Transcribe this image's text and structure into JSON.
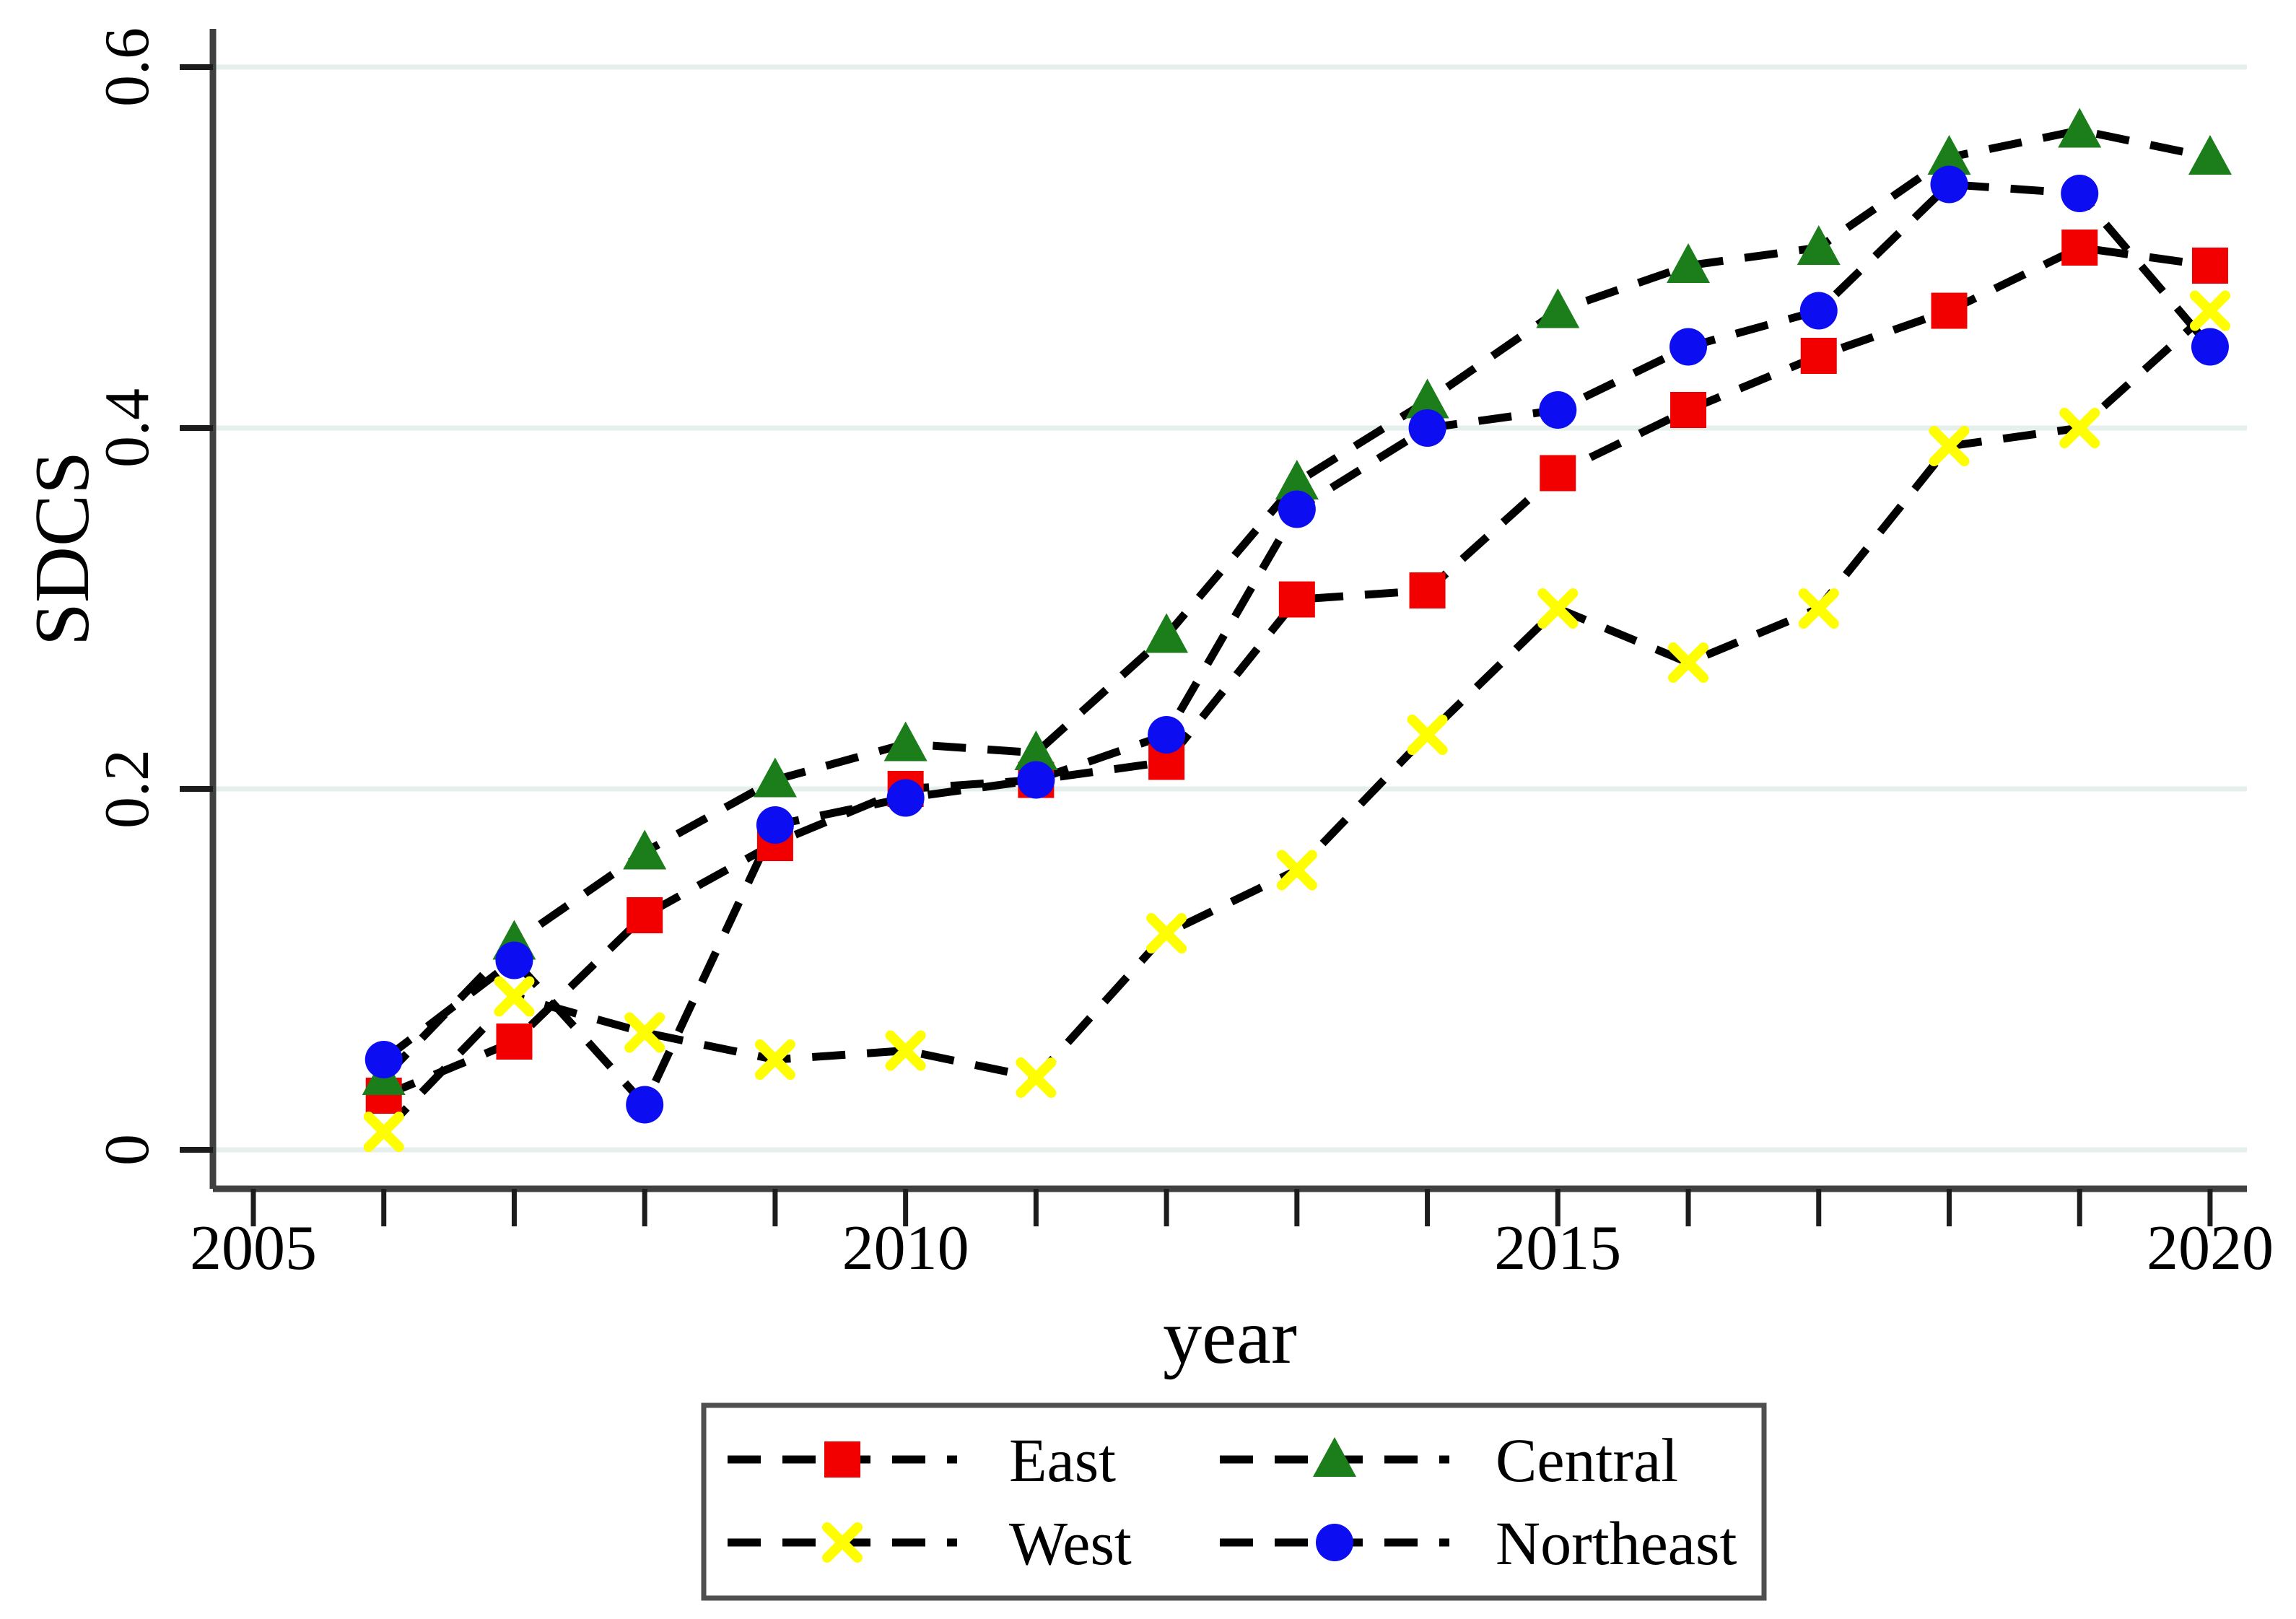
{
  "chart_data": {
    "type": "line",
    "title": "",
    "xlabel": "year",
    "ylabel": "SDCS",
    "x": [
      2006,
      2007,
      2008,
      2009,
      2010,
      2011,
      2012,
      2013,
      2014,
      2015,
      2016,
      2017,
      2018,
      2019,
      2020
    ],
    "series": [
      {
        "name": "East",
        "marker": "square",
        "color": "#f20000",
        "values": [
          0.03,
          0.06,
          0.13,
          0.17,
          0.2,
          0.205,
          0.215,
          0.305,
          0.31,
          0.375,
          0.41,
          0.44,
          0.465,
          0.5,
          0.49
        ]
      },
      {
        "name": "Central",
        "marker": "triangle",
        "color": "#1b7e1b",
        "values": [
          0.04,
          0.115,
          0.165,
          0.205,
          0.225,
          0.22,
          0.285,
          0.37,
          0.415,
          0.465,
          0.49,
          0.5,
          0.55,
          0.565,
          0.55
        ]
      },
      {
        "name": "West",
        "marker": "x",
        "color": "#fefe00",
        "values": [
          0.01,
          0.085,
          0.065,
          0.05,
          0.055,
          0.04,
          0.12,
          0.155,
          0.23,
          0.3,
          0.27,
          0.3,
          0.39,
          0.4,
          0.465
        ]
      },
      {
        "name": "Northeast",
        "marker": "circle",
        "color": "#0d0df2",
        "values": [
          0.05,
          0.105,
          0.025,
          0.18,
          0.195,
          0.205,
          0.23,
          0.355,
          0.4,
          0.41,
          0.445,
          0.465,
          0.535,
          0.53,
          0.445
        ]
      }
    ],
    "x_axis": {
      "tick_years": [
        2005,
        2006,
        2007,
        2008,
        2009,
        2010,
        2011,
        2012,
        2013,
        2014,
        2015,
        2016,
        2017,
        2018,
        2019,
        2020
      ],
      "labeled_ticks": [
        "2005",
        "2010",
        "2015",
        "2020"
      ],
      "labeled_tick_years": [
        2005,
        2010,
        2015,
        2020
      ],
      "range": [
        2004.69,
        2020.28
      ]
    },
    "y_axis": {
      "ticks": [
        0,
        0.2,
        0.4,
        0.6
      ],
      "tick_labels": [
        "0",
        "0.2",
        "0.4",
        "0.6"
      ],
      "range": [
        -0.0216,
        0.6212
      ]
    },
    "grid": "horizontal",
    "line_style": "dashed",
    "line_color": "#000000",
    "legend": {
      "position": "bottom",
      "columns": 2,
      "order": [
        "East",
        "Central",
        "West",
        "Northeast"
      ]
    },
    "colors": {
      "background": "#ffffff",
      "gridline": "#e5efeb",
      "axis": "#404040",
      "tick": "#1c1c1c",
      "legend_border": "#4f4f4f"
    }
  }
}
